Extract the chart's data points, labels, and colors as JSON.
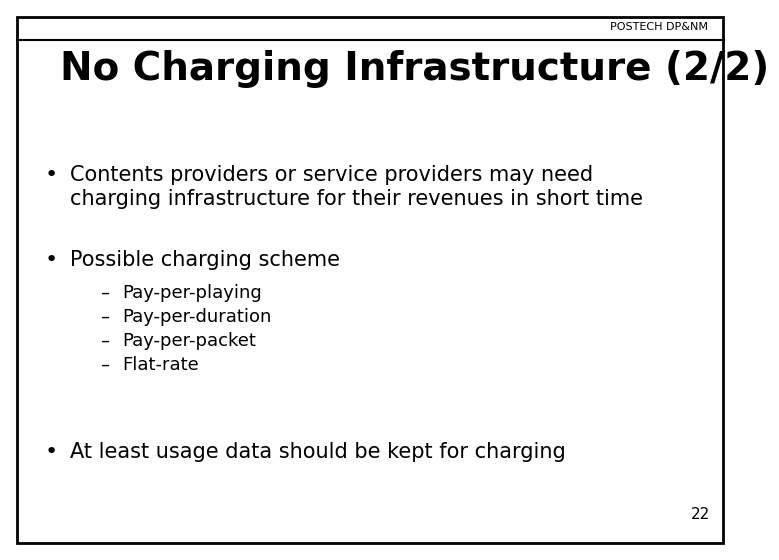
{
  "title": "No Charging Infrastructure (2/2)",
  "header_label": "POSTECH DP&NM",
  "slide_bg": "#ffffff",
  "border_color": "#000000",
  "text_color": "#000000",
  "title_fontsize": 28,
  "body_fontsize": 15,
  "sub_fontsize": 13,
  "header_fontsize": 8,
  "page_number": "22",
  "bullet1_line1": "Contents providers or service providers may need",
  "bullet1_line2": "charging infrastructure for their revenues in short time",
  "bullet2": "Possible charging scheme",
  "sub_bullets": [
    "Pay-per-playing",
    "Pay-per-duration",
    "Pay-per-packet",
    "Flat-rate"
  ],
  "bullet3": "At least usage data should be kept for charging"
}
